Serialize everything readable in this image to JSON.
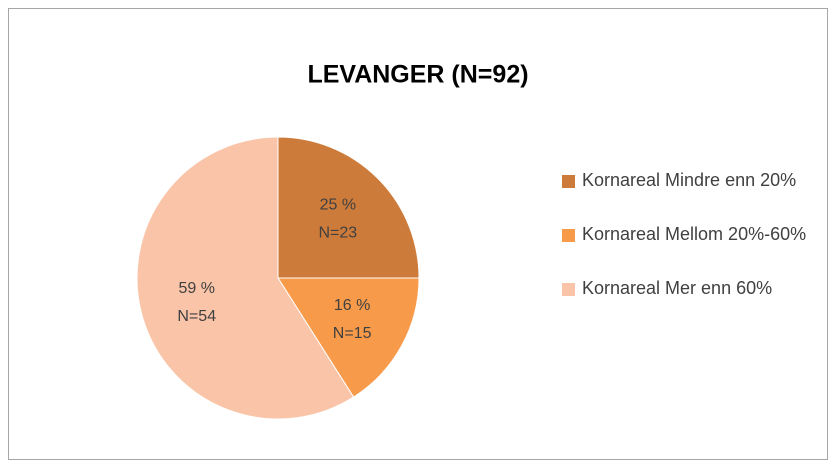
{
  "chart_data": {
    "type": "pie",
    "title": "LEVANGER (N=92)",
    "categories": [
      "Kornareal Mindre enn 20%",
      "Kornareal Mellom 20%-60%",
      "Kornareal Mer enn 60%"
    ],
    "values": [
      25,
      16,
      59
    ],
    "value_labels": [
      "25 %",
      "16 %",
      "59 %"
    ],
    "n_labels": [
      "N=23",
      "N=15",
      "N=54"
    ],
    "colors": [
      "#cd7b3a",
      "#f79a4a",
      "#f9c4a7"
    ],
    "legend": "right"
  }
}
